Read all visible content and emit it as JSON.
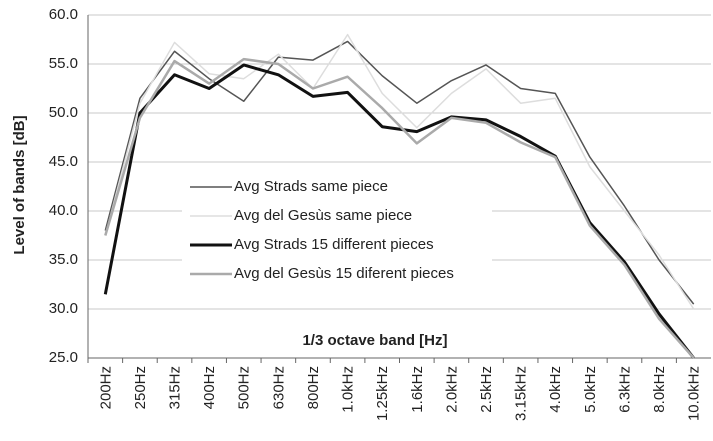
{
  "chart_data": {
    "type": "line",
    "y_label": "Level of bands [dB]",
    "x_label": "1/3 octave band [Hz]",
    "categories": [
      "200Hz",
      "250Hz",
      "315Hz",
      "400Hz",
      "500Hz",
      "630Hz",
      "800Hz",
      "1.0kHz",
      "1.25kHz",
      "1.6kHz",
      "2.0kHz",
      "2.5kHz",
      "3.15kHz",
      "4.0kHz",
      "5.0kHz",
      "6.3kHz",
      "8.0kHz",
      "10.0kHz"
    ],
    "series": [
      {
        "name": "Avg Strads same piece",
        "color": "#555555",
        "width": 1.5,
        "values": [
          38,
          51.5,
          56.3,
          53.5,
          51.2,
          55.7,
          55.4,
          57.3,
          53.8,
          51,
          53.3,
          54.9,
          52.5,
          52,
          45.5,
          40.5,
          35,
          30.5
        ]
      },
      {
        "name": "Avg del Gesùs same piece",
        "color": "#dddddd",
        "width": 1.5,
        "values": [
          37.5,
          51,
          57.2,
          54,
          53.5,
          56,
          52.5,
          58,
          52,
          48.5,
          52,
          54.5,
          51,
          51.5,
          44.5,
          40,
          35.5,
          30
        ]
      },
      {
        "name": "Avg Strads 15 different pieces",
        "color": "#111111",
        "width": 3,
        "values": [
          31.5,
          50,
          53.9,
          52.5,
          54.9,
          53.9,
          51.7,
          52.1,
          48.6,
          48.1,
          49.6,
          49.3,
          47.6,
          45.6,
          38.8,
          34.8,
          29.5,
          25
        ]
      },
      {
        "name": "Avg del Gesùs 15 diferent pieces",
        "color": "#aaaaaa",
        "width": 2.5,
        "values": [
          37.5,
          49.5,
          55.3,
          53,
          55.5,
          55,
          52.5,
          53.7,
          50.5,
          46.9,
          49.5,
          49,
          47,
          45.5,
          38.5,
          34.5,
          29,
          25
        ]
      }
    ],
    "ylim": [
      25,
      60
    ],
    "yticks": [
      {
        "value": 25,
        "label": "25.0"
      },
      {
        "value": 30,
        "label": "30.0"
      },
      {
        "value": 35,
        "label": "35.0"
      },
      {
        "value": 40,
        "label": "40.0"
      },
      {
        "value": 45,
        "label": "45.0"
      },
      {
        "value": 50,
        "label": "50.0"
      },
      {
        "value": 55,
        "label": "55.0"
      },
      {
        "value": 60,
        "label": "60.0"
      }
    ],
    "grid": true
  }
}
